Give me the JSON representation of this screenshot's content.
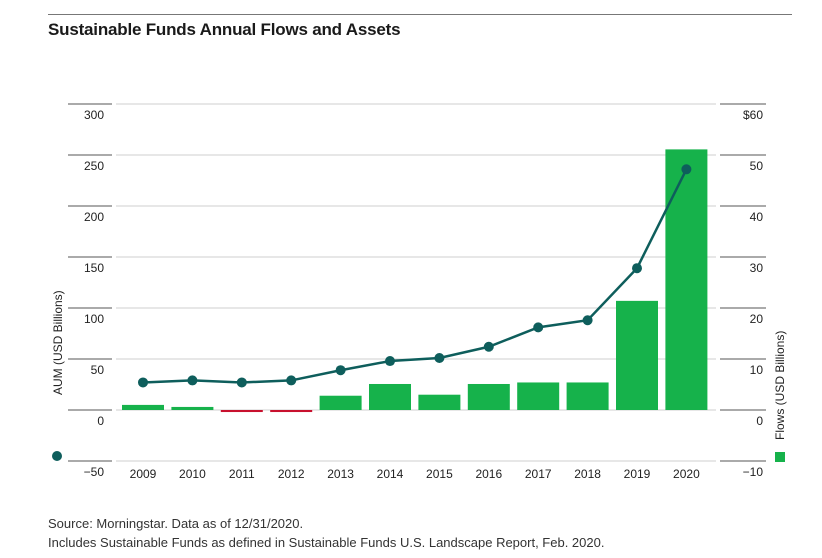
{
  "title": "Sustainable Funds Annual Flows and Assets",
  "source_lines": [
    "Source: Morningstar. Data as of 12/31/2020.",
    "Includes Sustainable Funds as defined in Sustainable Funds U.S. Landscape Report, Feb. 2020."
  ],
  "colors": {
    "positive_bar": "#16b24b",
    "negative_bar": "#c8102e",
    "line": "#0e5e5c",
    "grid": "#cfcfcf",
    "axis_text": "#222222"
  },
  "chart_data": {
    "type": "bar+line",
    "categories": [
      "2009",
      "2010",
      "2011",
      "2012",
      "2013",
      "2014",
      "2015",
      "2016",
      "2017",
      "2018",
      "2019",
      "2020"
    ],
    "series": [
      {
        "name": "AUM (USD Billions)",
        "type": "line",
        "axis": "left",
        "values": [
          27,
          29,
          27,
          29,
          39,
          48,
          51,
          62,
          81,
          88,
          139,
          236
        ]
      },
      {
        "name": "Flows (USD Billions)",
        "type": "bar",
        "axis": "right",
        "values": [
          1.0,
          0.6,
          -0.4,
          -0.4,
          2.8,
          5.1,
          3.0,
          5.1,
          5.4,
          5.4,
          21.4,
          51.1
        ]
      }
    ],
    "left_axis": {
      "label": "AUM (USD Billions)",
      "ylim": [
        -50,
        300
      ],
      "ticks": [
        -50,
        0,
        50,
        100,
        150,
        200,
        250,
        300
      ],
      "tick_labels": [
        "−50",
        "0",
        "50",
        "100",
        "150",
        "200",
        "250",
        "300"
      ]
    },
    "right_axis": {
      "label": "Flows (USD Billions)",
      "ylim": [
        -10,
        60
      ],
      "ticks": [
        -10,
        0,
        10,
        20,
        30,
        40,
        50,
        60
      ],
      "tick_labels": [
        "−10",
        "0",
        "10",
        "20",
        "30",
        "40",
        "50",
        "$60"
      ]
    },
    "grid": true
  }
}
